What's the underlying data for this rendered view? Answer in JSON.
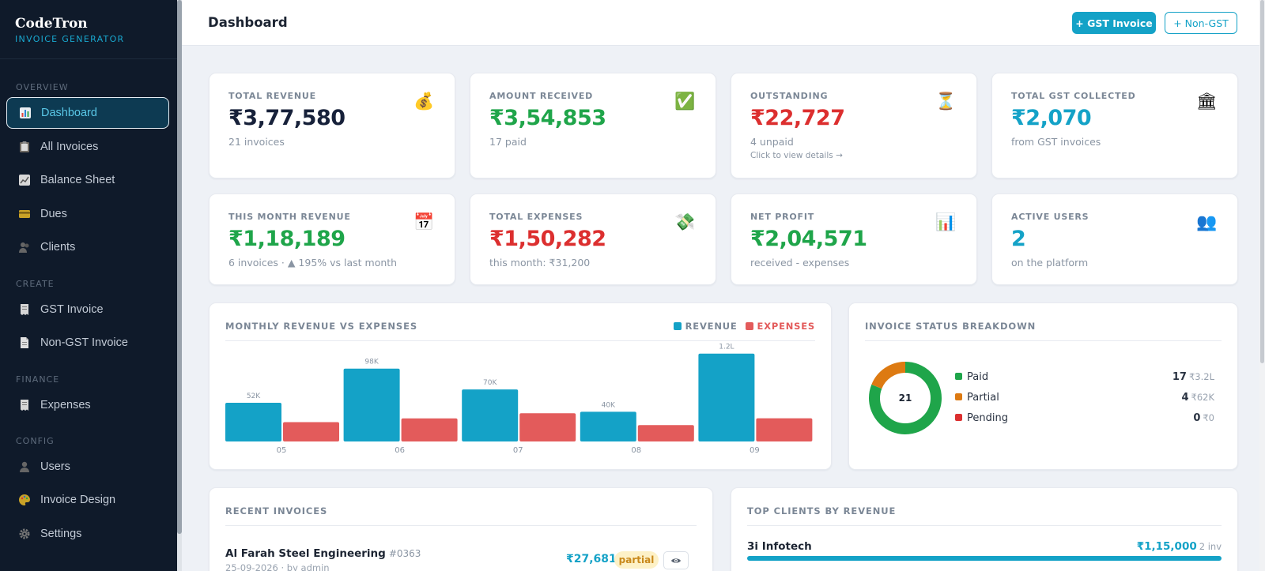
{
  "brand": {
    "name": "CodeTron",
    "subtitle": "INVOICE GENERATOR"
  },
  "sidebar": {
    "sections": [
      "OVERVIEW",
      "CREATE",
      "FINANCE",
      "CONFIG"
    ],
    "items": [
      {
        "label": "Dashboard",
        "icon": "bar-chart-icon",
        "active": true
      },
      {
        "label": "All Invoices",
        "icon": "clipboard-icon"
      },
      {
        "label": "Balance Sheet",
        "icon": "line-chart-icon"
      },
      {
        "label": "Dues",
        "icon": "credit-card-icon"
      },
      {
        "label": "Clients",
        "icon": "people-icon"
      },
      {
        "label": "GST Invoice",
        "icon": "receipt-icon"
      },
      {
        "label": "Non-GST Invoice",
        "icon": "document-icon"
      },
      {
        "label": "Expenses",
        "icon": "receipt-icon"
      },
      {
        "label": "Users",
        "icon": "user-icon"
      },
      {
        "label": "Invoice Design",
        "icon": "palette-icon"
      },
      {
        "label": "Settings",
        "icon": "gear-icon"
      }
    ]
  },
  "header": {
    "title": "Dashboard",
    "gst_button": "+ GST Invoice",
    "non_gst_button": "+ Non-GST"
  },
  "stats": [
    {
      "label": "TOTAL REVENUE",
      "value": "₹3,77,580",
      "sub": "21 invoices",
      "color": "#17213a",
      "icon": "money-bag-icon",
      "glyph": "💰"
    },
    {
      "label": "AMOUNT RECEIVED",
      "value": "₹3,54,853",
      "sub": "17 paid",
      "color": "#1fa54a",
      "icon": "check-box-icon",
      "glyph": "✅"
    },
    {
      "label": "OUTSTANDING",
      "value": "₹22,727",
      "sub": "4 unpaid",
      "hint": "Click to view details →",
      "color": "#dc2f2f",
      "icon": "hourglass-icon",
      "glyph": "⏳"
    },
    {
      "label": "TOTAL GST COLLECTED",
      "value": "₹2,070",
      "sub": "from GST invoices",
      "color": "#14a2c7",
      "icon": "bank-icon",
      "glyph": "🏛"
    },
    {
      "label": "THIS MONTH REVENUE",
      "value": "₹1,18,189",
      "sub": "6 invoices · ▲ 195% vs last month",
      "color": "#1fa54a",
      "icon": "calendar-icon",
      "glyph": "📅"
    },
    {
      "label": "TOTAL EXPENSES",
      "value": "₹1,50,282",
      "sub": "this month: ₹31,200",
      "color": "#dc2f2f",
      "icon": "money-wings-icon",
      "glyph": "💸"
    },
    {
      "label": "NET PROFIT",
      "value": "₹2,04,571",
      "sub": "received - expenses",
      "color": "#1fa54a",
      "icon": "bar-chart-icon",
      "glyph": "📊"
    },
    {
      "label": "ACTIVE USERS",
      "value": "2",
      "sub": "on the platform",
      "color": "#14a2c7",
      "icon": "users-icon",
      "glyph": "👥"
    }
  ],
  "chart_data": [
    {
      "type": "bar",
      "title": "MONTHLY REVENUE VS EXPENSES",
      "categories": [
        "05",
        "06",
        "07",
        "08",
        "09"
      ],
      "series": [
        {
          "name": "REVENUE",
          "color": "#14a2c7",
          "values": [
            52000,
            98000,
            70000,
            40000,
            118189
          ],
          "labels": [
            "52K",
            "98K",
            "70K",
            "40K",
            "1.2L"
          ]
        },
        {
          "name": "EXPENSES",
          "color": "#e35b5b",
          "values": [
            26000,
            31000,
            38000,
            22000,
            31200
          ]
        }
      ],
      "ylim": [
        0,
        120000
      ],
      "legend": "top-right",
      "grid": false
    },
    {
      "type": "pie",
      "title": "INVOICE STATUS BREAKDOWN",
      "center_label": "21",
      "slices": [
        {
          "name": "Paid",
          "count": 17,
          "amount": "₹3.2L",
          "color": "#1fa54a"
        },
        {
          "name": "Partial",
          "count": 4,
          "amount": "₹62K",
          "color": "#dd7a12"
        },
        {
          "name": "Pending",
          "count": 0,
          "amount": "₹0",
          "color": "#dc2f2f"
        }
      ]
    }
  ],
  "recent": {
    "title": "RECENT INVOICES",
    "rows": [
      {
        "client": "Al Farah Steel Engineering",
        "number": "#0363",
        "meta": "25-09-2026 · by admin",
        "amount": "₹27,681",
        "status": "partial"
      }
    ]
  },
  "top_clients": {
    "title": "TOP CLIENTS BY REVENUE",
    "rows": [
      {
        "name": "3i Infotech",
        "amount": "₹1,15,000",
        "invoices": "2 inv",
        "share": 1.0
      }
    ]
  }
}
